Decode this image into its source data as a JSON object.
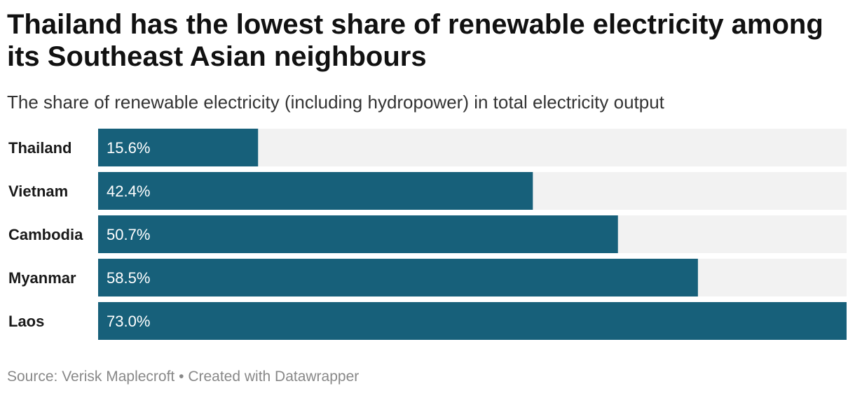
{
  "title": "Thailand has the lowest share of renewable electricity among its Southeast Asian neighbours",
  "subtitle": "The share of renewable electricity (including hydropower) in total electricity output",
  "footer": {
    "source": "Source: Verisk Maplecroft",
    "separator": "•",
    "credit": "Created with Datawrapper"
  },
  "colors": {
    "bar": "#17607a",
    "track": "#f2f2f2",
    "bar_label": "#ffffff",
    "category_label": "#1a1a1a"
  },
  "chart_data": {
    "type": "bar",
    "orientation": "horizontal",
    "title": "Thailand has the lowest share of renewable electricity among its Southeast Asian neighbours",
    "subtitle": "The share of renewable electricity (including hydropower) in total electricity output",
    "categories": [
      "Thailand",
      "Vietnam",
      "Cambodia",
      "Myanmar",
      "Laos"
    ],
    "values": [
      15.6,
      42.4,
      50.7,
      58.5,
      73.0
    ],
    "value_labels": [
      "15.6%",
      "42.4%",
      "50.7%",
      "58.5%",
      "73.0%"
    ],
    "unit": "%",
    "xlim": [
      0,
      73.0
    ],
    "grid": false,
    "legend": "none"
  }
}
